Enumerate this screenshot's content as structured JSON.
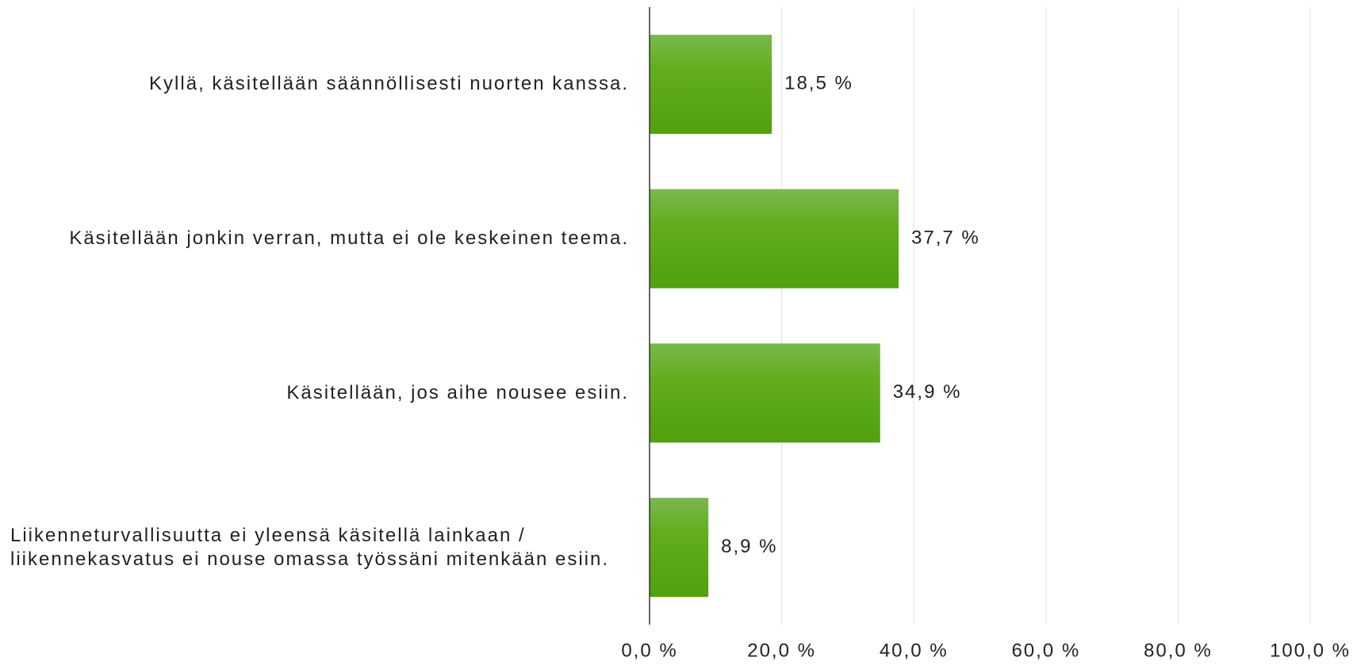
{
  "chart_data": {
    "type": "hbar",
    "categories": [
      "Kyllä, käsitellään säännöllisesti nuorten kanssa.",
      "Käsitellään jonkin verran, mutta ei ole keskeinen teema.",
      "Käsitellään, jos aihe nousee esiin.",
      "Liikenneturvallisuutta ei yleensä käsitellä lainkaan / liikennekasvatus ei nouse omassa työssäni mitenkään esiin."
    ],
    "values": [
      18.5,
      37.7,
      34.9,
      8.9
    ],
    "value_labels": [
      "18,5 %",
      "37,7 %",
      "34,9 %",
      "8,9 %"
    ],
    "color": "#5aa81a",
    "xlim": [
      0,
      100
    ],
    "xticks": [
      {
        "value": 0,
        "label": "0,0 %"
      },
      {
        "value": 20,
        "label": "20,0 %"
      },
      {
        "value": 40,
        "label": "40,0 %"
      },
      {
        "value": 60,
        "label": "60,0 %"
      },
      {
        "value": 80,
        "label": "80,0 %"
      },
      {
        "value": 100,
        "label": "100,0 %"
      }
    ],
    "grid": true
  }
}
